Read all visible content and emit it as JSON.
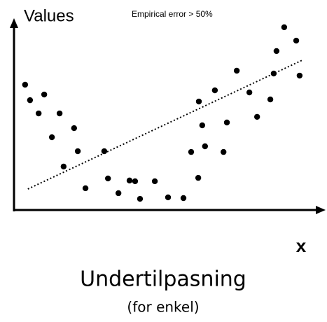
{
  "chart_data": {
    "type": "scatter",
    "title": "Undertilpasning",
    "subtitle": "(for enkel)",
    "ylabel": "Values",
    "xlabel": "x",
    "annotation": "Empirical error > 50%",
    "color": "#000000",
    "xlim": [
      0,
      100
    ],
    "ylim": [
      0,
      100
    ],
    "x": [
      3.6,
      5.2,
      9.8,
      8.0,
      12.3,
      14.8,
      19.5,
      16.1,
      20.7,
      23.2,
      29.3,
      30.5,
      33.9,
      37.5,
      40.9,
      39.3,
      45.7,
      50.0,
      55.0,
      57.5,
      59.8,
      60.0,
      61.1,
      62.0,
      65.2,
      68.0,
      69.1,
      72.3,
      76.4,
      78.9,
      83.2,
      84.3,
      85.2,
      87.7,
      91.6,
      92.7
    ],
    "values": [
      66.3,
      58.1,
      61.1,
      51.1,
      38.5,
      51.1,
      43.3,
      23.0,
      31.1,
      11.5,
      31.1,
      16.7,
      8.9,
      15.6,
      5.9,
      15.2,
      15.2,
      6.7,
      6.3,
      30.7,
      17.0,
      57.4,
      44.8,
      33.7,
      63.3,
      30.7,
      46.3,
      73.7,
      62.2,
      49.3,
      58.5,
      72.2,
      84.1,
      96.7,
      89.6,
      71.1
    ],
    "trendline": {
      "x": [
        4.5,
        93.6
      ],
      "values": [
        11.1,
        79.3
      ]
    }
  }
}
